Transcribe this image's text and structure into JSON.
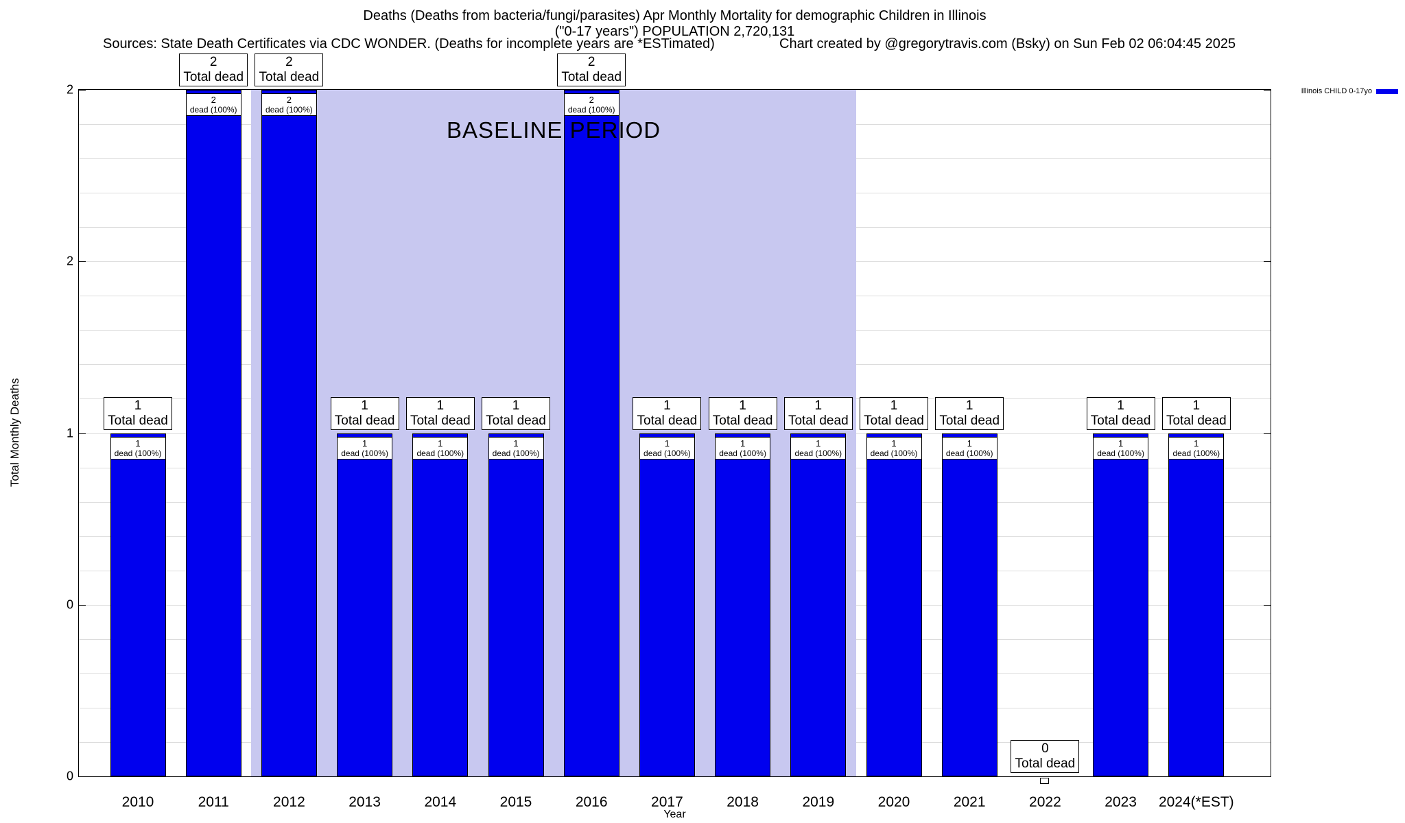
{
  "header": {
    "sources": "Sources: State Death Certificates via CDC WONDER. (Deaths for incomplete years are *ESTimated)",
    "credit": "Chart created by @gregorytravis.com (Bsky) on Sun Feb 02 06:04:45 2025"
  },
  "chart_data": {
    "type": "bar",
    "title": "Deaths (Deaths from bacteria/fungi/parasites) Apr Monthly Mortality for demographic Children in Illinois",
    "subtitle": "(\"0-17 years\") POPULATION 2,720,131",
    "xlabel": "Year",
    "ylabel": "Total Monthly Deaths",
    "ylim": [
      0,
      2
    ],
    "grid": true,
    "grid_interval": 0.1,
    "bar_color": "#0000ee",
    "categories": [
      "2010",
      "2011",
      "2012",
      "2013",
      "2014",
      "2015",
      "2016",
      "2017",
      "2018",
      "2019",
      "2020",
      "2021",
      "2022",
      "2023",
      "2024(*EST)"
    ],
    "values": [
      1,
      2,
      2,
      1,
      1,
      1,
      2,
      1,
      1,
      1,
      1,
      1,
      0,
      1,
      1
    ],
    "labels": {
      "total_dead": "Total dead",
      "dead_pct": "dead (100%)"
    },
    "y_ticks": [
      {
        "value": 0,
        "label": "0"
      },
      {
        "value": 0.5,
        "label": "0"
      },
      {
        "value": 1,
        "label": "1"
      },
      {
        "value": 1.5,
        "label": "2"
      },
      {
        "value": 2,
        "label": "2"
      }
    ],
    "baseline_region": {
      "label": "BASELINE PERIOD",
      "start_category": "2012",
      "end_category": "2019",
      "fill": "#c8c8f0"
    },
    "legend": {
      "label": "Illinois CHILD 0-17yo",
      "color": "#0000ee",
      "position": "top-right"
    }
  }
}
